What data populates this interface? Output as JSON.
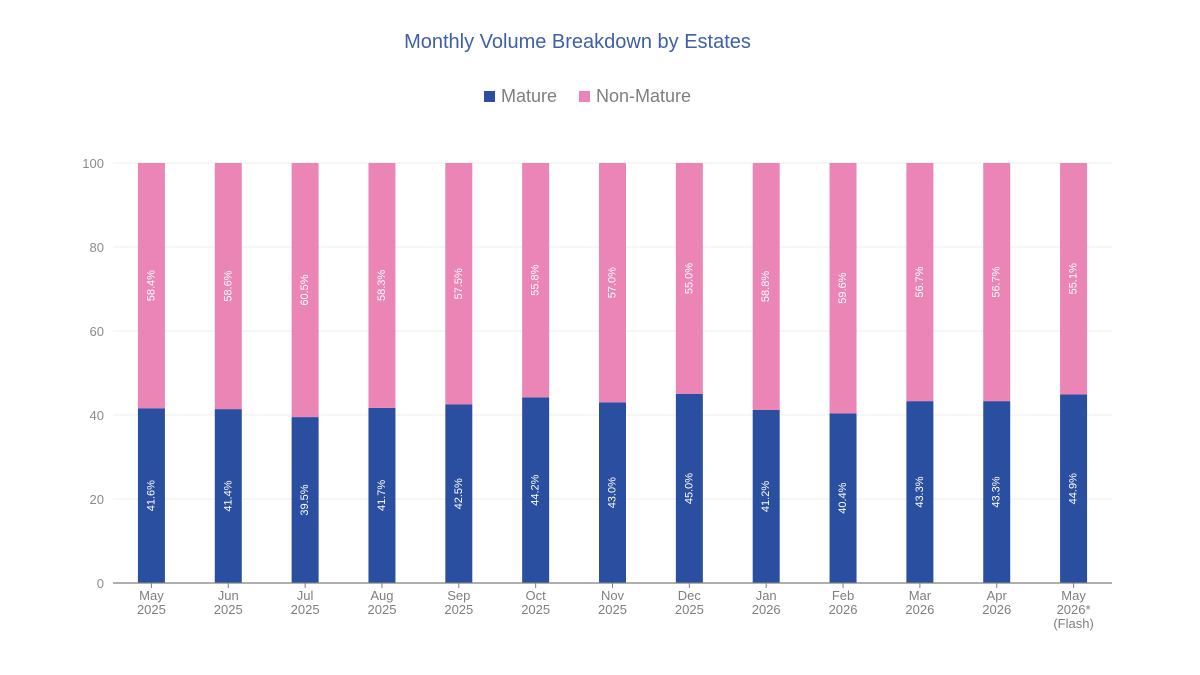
{
  "chart_data": {
    "type": "bar",
    "stacked": true,
    "title": "Monthly Volume Breakdown by Estates",
    "legend_position": "top",
    "grid": true,
    "ylim": [
      0,
      100
    ],
    "yticks": [
      0,
      20,
      40,
      60,
      80,
      100
    ],
    "categories": [
      [
        "May",
        "2025"
      ],
      [
        "Jun",
        "2025"
      ],
      [
        "Jul",
        "2025"
      ],
      [
        "Aug",
        "2025"
      ],
      [
        "Sep",
        "2025"
      ],
      [
        "Oct",
        "2025"
      ],
      [
        "Nov",
        "2025"
      ],
      [
        "Dec",
        "2025"
      ],
      [
        "Jan",
        "2026"
      ],
      [
        "Feb",
        "2026"
      ],
      [
        "Mar",
        "2026"
      ],
      [
        "Apr",
        "2026"
      ],
      [
        "May",
        "2026*",
        "(Flash)"
      ]
    ],
    "series": [
      {
        "name": "Mature",
        "color": "#2a4fa0",
        "values": [
          41.6,
          41.4,
          39.5,
          41.7,
          42.5,
          44.2,
          43.0,
          45.0,
          41.2,
          40.4,
          43.3,
          43.3,
          44.9
        ],
        "labels": [
          "41.6%",
          "41.4%",
          "39.5%",
          "41.7%",
          "42.5%",
          "44.2%",
          "43.0%",
          "45.0%",
          "41.2%",
          "40.4%",
          "43.3%",
          "43.3%",
          "44.9%"
        ]
      },
      {
        "name": "Non-Mature",
        "color": "#ea85b6",
        "values": [
          58.4,
          58.6,
          60.5,
          58.3,
          57.5,
          55.8,
          57.0,
          55.0,
          58.8,
          59.6,
          56.7,
          56.7,
          55.1
        ],
        "labels": [
          "58.4%",
          "58.6%",
          "60.5%",
          "58.3%",
          "57.5%",
          "55.8%",
          "57.0%",
          "55.0%",
          "58.8%",
          "59.6%",
          "56.7%",
          "56.7%",
          "55.1%"
        ]
      }
    ]
  }
}
